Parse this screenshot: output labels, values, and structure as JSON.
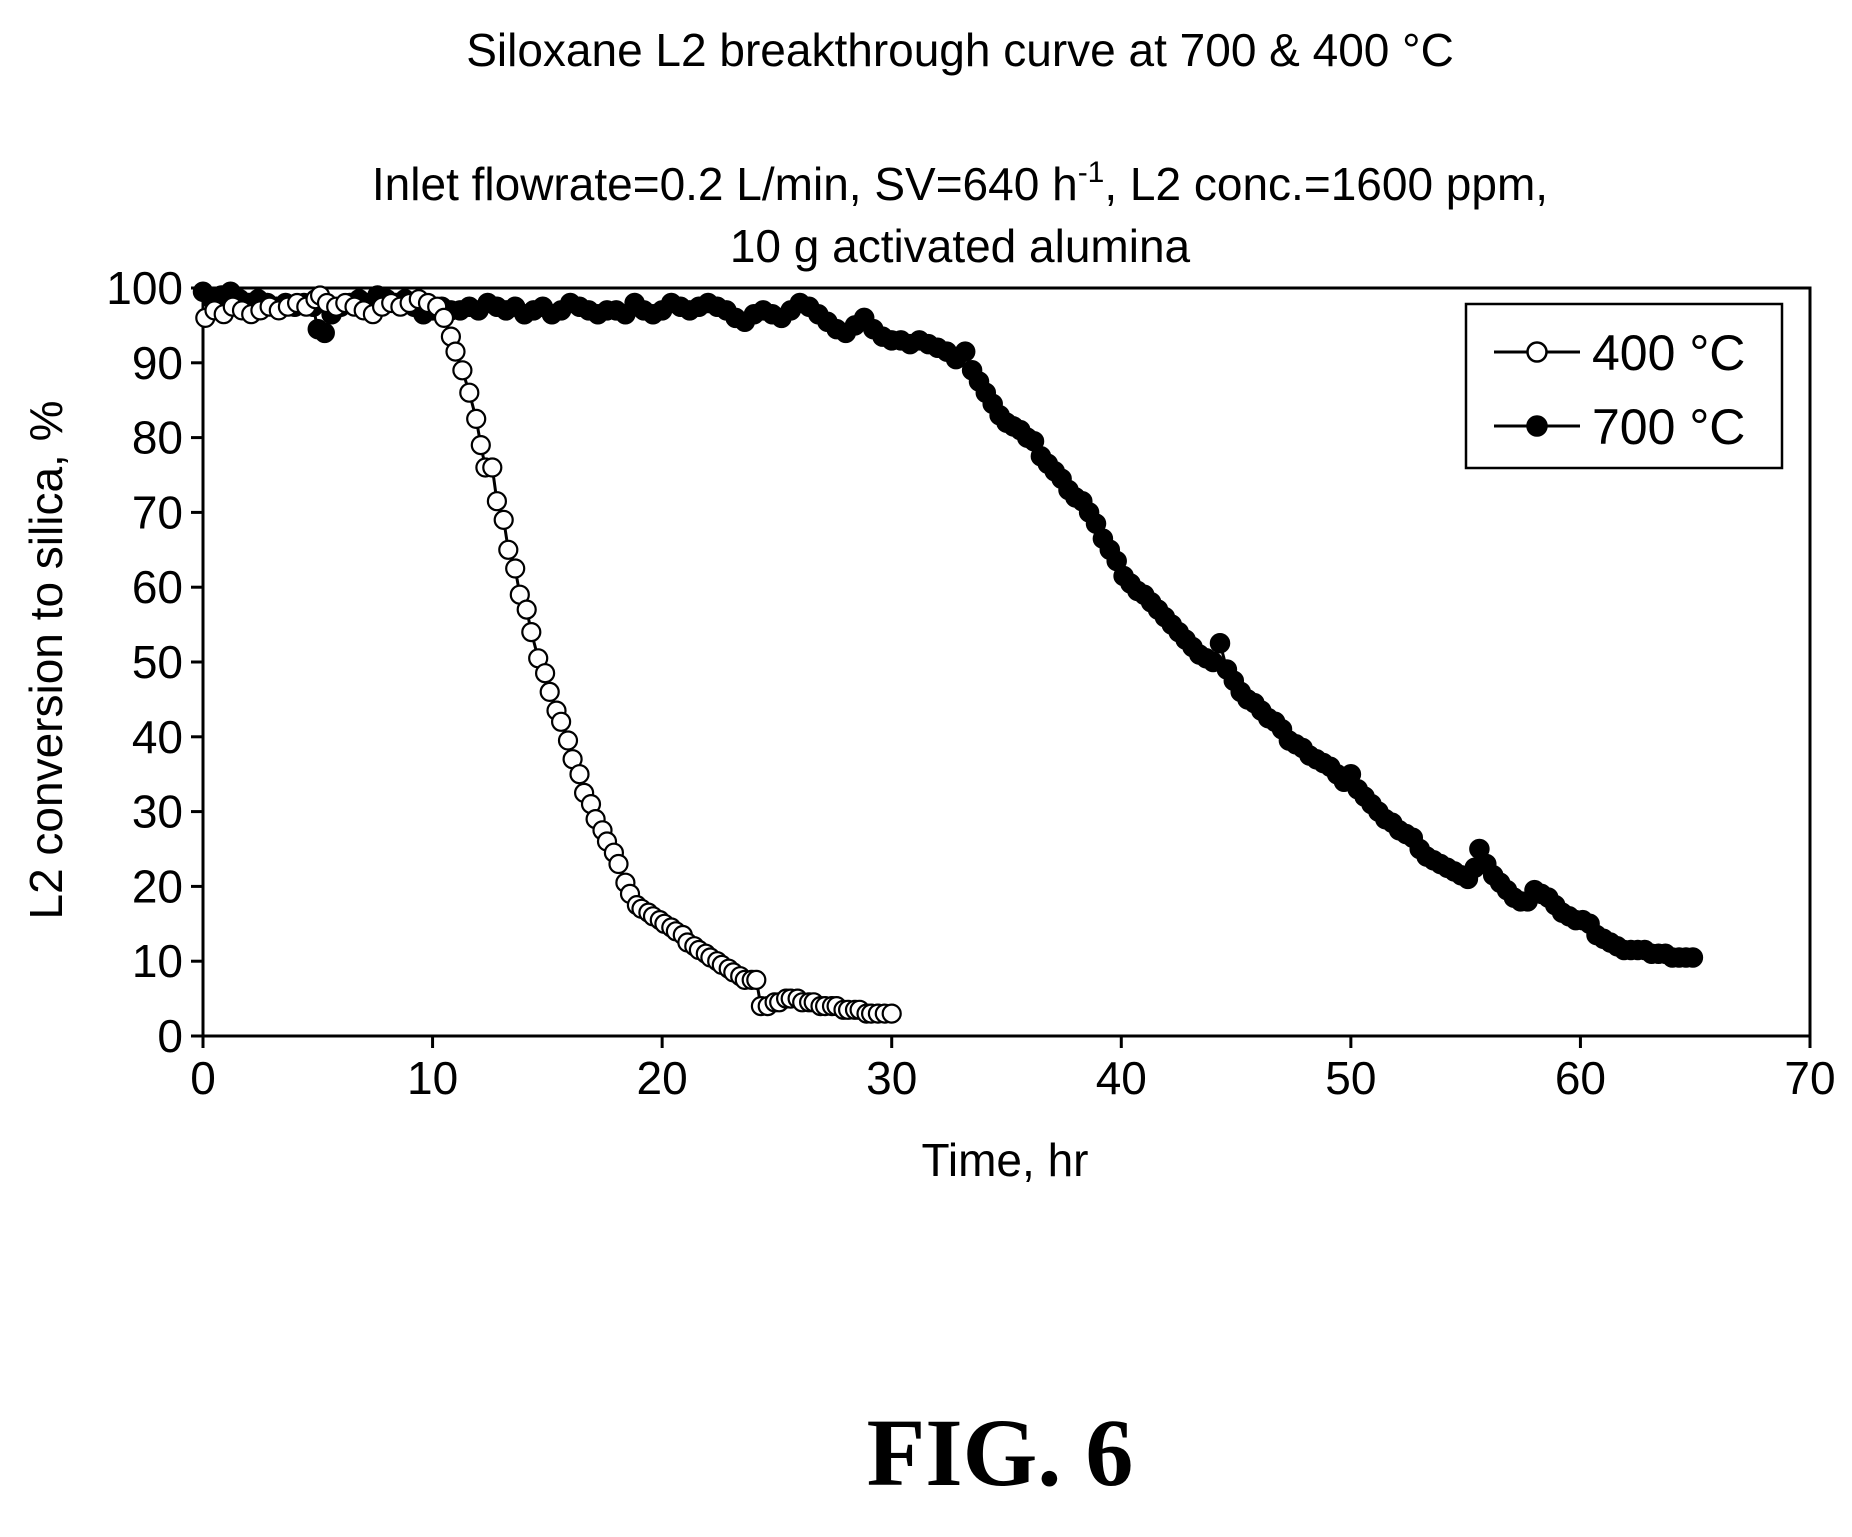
{
  "figure": {
    "label": "FIG. 6"
  },
  "chart_data": {
    "type": "scatter",
    "title": "Siloxane L2 breakthrough curve at 700 & 400 °C",
    "subtitle_prefix": "Inlet flowrate=0.2 L/min, SV=640 h",
    "subtitle_sup": "-1",
    "subtitle_suffix": ", L2 conc.=1600 ppm,",
    "subtitle_line2": "10 g activated alumina",
    "xlabel": "Time, hr",
    "ylabel": "L2 conversion to silica, %",
    "xlim": [
      0,
      70
    ],
    "ylim": [
      0,
      100
    ],
    "xticks": [
      0,
      10,
      20,
      30,
      40,
      50,
      60,
      70
    ],
    "yticks": [
      0,
      10,
      20,
      30,
      40,
      50,
      60,
      70,
      80,
      90,
      100
    ],
    "grid": false,
    "legend_position": "top-right",
    "series": [
      {
        "name": "400 °C",
        "marker": "open-circle",
        "color": "#000000",
        "points": [
          [
            0.1,
            96
          ],
          [
            0.5,
            97
          ],
          [
            0.9,
            96.5
          ],
          [
            1.3,
            97.5
          ],
          [
            1.7,
            97
          ],
          [
            2.1,
            96.5
          ],
          [
            2.5,
            97
          ],
          [
            2.9,
            97.5
          ],
          [
            3.3,
            97
          ],
          [
            3.7,
            97.5
          ],
          [
            4.1,
            98
          ],
          [
            4.5,
            97.5
          ],
          [
            4.9,
            98.5
          ],
          [
            5.1,
            99
          ],
          [
            5.4,
            98
          ],
          [
            5.8,
            97.5
          ],
          [
            6.2,
            98
          ],
          [
            6.6,
            97.5
          ],
          [
            7.0,
            97
          ],
          [
            7.4,
            96.5
          ],
          [
            7.8,
            97.5
          ],
          [
            8.2,
            98
          ],
          [
            8.6,
            97.5
          ],
          [
            9.0,
            98
          ],
          [
            9.4,
            98.5
          ],
          [
            9.8,
            98
          ],
          [
            10.2,
            97.5
          ],
          [
            10.5,
            96
          ],
          [
            10.8,
            93.5
          ],
          [
            11.0,
            91.5
          ],
          [
            11.3,
            89
          ],
          [
            11.6,
            86
          ],
          [
            11.9,
            82.5
          ],
          [
            12.1,
            79
          ],
          [
            12.3,
            76
          ],
          [
            12.6,
            76
          ],
          [
            12.8,
            71.5
          ],
          [
            13.1,
            69
          ],
          [
            13.3,
            65
          ],
          [
            13.6,
            62.5
          ],
          [
            13.8,
            59
          ],
          [
            14.1,
            57
          ],
          [
            14.3,
            54
          ],
          [
            14.6,
            50.5
          ],
          [
            14.9,
            48.5
          ],
          [
            15.1,
            46
          ],
          [
            15.4,
            43.5
          ],
          [
            15.6,
            42
          ],
          [
            15.9,
            39.5
          ],
          [
            16.1,
            37
          ],
          [
            16.4,
            35
          ],
          [
            16.6,
            32.5
          ],
          [
            16.9,
            31
          ],
          [
            17.1,
            29
          ],
          [
            17.4,
            27.5
          ],
          [
            17.6,
            26
          ],
          [
            17.9,
            24.5
          ],
          [
            18.1,
            23
          ],
          [
            18.4,
            20.5
          ],
          [
            18.6,
            19
          ],
          [
            18.9,
            17.5
          ],
          [
            19.1,
            17
          ],
          [
            19.4,
            16.5
          ],
          [
            19.6,
            16
          ],
          [
            19.9,
            15.5
          ],
          [
            20.1,
            15
          ],
          [
            20.4,
            14.5
          ],
          [
            20.6,
            14
          ],
          [
            20.9,
            13.5
          ],
          [
            21.1,
            12.5
          ],
          [
            21.4,
            12
          ],
          [
            21.6,
            11.5
          ],
          [
            21.9,
            11
          ],
          [
            22.1,
            10.5
          ],
          [
            22.4,
            10
          ],
          [
            22.6,
            9.5
          ],
          [
            22.9,
            9
          ],
          [
            23.1,
            8.5
          ],
          [
            23.4,
            8
          ],
          [
            23.6,
            7.5
          ],
          [
            23.9,
            7.5
          ],
          [
            24.1,
            7.5
          ],
          [
            24.3,
            4
          ],
          [
            24.6,
            4
          ],
          [
            24.9,
            4.5
          ],
          [
            25.1,
            4.5
          ],
          [
            25.4,
            5
          ],
          [
            25.6,
            5
          ],
          [
            25.9,
            5
          ],
          [
            26.1,
            4.5
          ],
          [
            26.4,
            4.5
          ],
          [
            26.6,
            4.5
          ],
          [
            26.9,
            4
          ],
          [
            27.1,
            4
          ],
          [
            27.4,
            4
          ],
          [
            27.6,
            4
          ],
          [
            27.9,
            3.5
          ],
          [
            28.1,
            3.5
          ],
          [
            28.4,
            3.5
          ],
          [
            28.6,
            3.5
          ],
          [
            28.9,
            3
          ],
          [
            29.1,
            3
          ],
          [
            29.4,
            3
          ],
          [
            29.7,
            3
          ],
          [
            30.0,
            3
          ]
        ]
      },
      {
        "name": "700 °C",
        "marker": "filled-circle",
        "color": "#000000",
        "points": [
          [
            0.0,
            99.5
          ],
          [
            0.4,
            98.5
          ],
          [
            0.8,
            99
          ],
          [
            1.2,
            99.5
          ],
          [
            1.6,
            98.5
          ],
          [
            2.0,
            98
          ],
          [
            2.4,
            98.5
          ],
          [
            2.8,
            98
          ],
          [
            3.2,
            97.5
          ],
          [
            3.6,
            98
          ],
          [
            4.0,
            97.5
          ],
          [
            4.4,
            98
          ],
          [
            4.8,
            97.5
          ],
          [
            5.0,
            94.5
          ],
          [
            5.3,
            94
          ],
          [
            5.6,
            96.5
          ],
          [
            6.0,
            97.5
          ],
          [
            6.4,
            98
          ],
          [
            6.8,
            98.5
          ],
          [
            7.2,
            98
          ],
          [
            7.6,
            99
          ],
          [
            8.0,
            98.5
          ],
          [
            8.4,
            98
          ],
          [
            8.8,
            98.5
          ],
          [
            9.2,
            97.5
          ],
          [
            9.6,
            96.5
          ],
          [
            10.0,
            97
          ],
          [
            10.4,
            97.5
          ],
          [
            10.8,
            97
          ],
          [
            11.2,
            97
          ],
          [
            11.6,
            97.5
          ],
          [
            12.0,
            97
          ],
          [
            12.4,
            98
          ],
          [
            12.8,
            97.5
          ],
          [
            13.2,
            97
          ],
          [
            13.6,
            97.5
          ],
          [
            14.0,
            96.5
          ],
          [
            14.4,
            97
          ],
          [
            14.8,
            97.5
          ],
          [
            15.2,
            96.5
          ],
          [
            15.6,
            97
          ],
          [
            16.0,
            98
          ],
          [
            16.4,
            97.5
          ],
          [
            16.8,
            97
          ],
          [
            17.2,
            96.5
          ],
          [
            17.6,
            97
          ],
          [
            18.0,
            97
          ],
          [
            18.4,
            96.5
          ],
          [
            18.8,
            98
          ],
          [
            19.2,
            97
          ],
          [
            19.6,
            96.5
          ],
          [
            20.0,
            97
          ],
          [
            20.4,
            98
          ],
          [
            20.8,
            97.5
          ],
          [
            21.2,
            97
          ],
          [
            21.6,
            97.5
          ],
          [
            22.0,
            98
          ],
          [
            22.4,
            97.5
          ],
          [
            22.8,
            97
          ],
          [
            23.2,
            96
          ],
          [
            23.6,
            95.5
          ],
          [
            24.0,
            96.5
          ],
          [
            24.4,
            97
          ],
          [
            24.8,
            96.5
          ],
          [
            25.2,
            96
          ],
          [
            25.6,
            97
          ],
          [
            26.0,
            98
          ],
          [
            26.4,
            97.5
          ],
          [
            26.8,
            96.5
          ],
          [
            27.2,
            95.5
          ],
          [
            27.6,
            94.5
          ],
          [
            28.0,
            94
          ],
          [
            28.4,
            95
          ],
          [
            28.8,
            96
          ],
          [
            29.2,
            94.5
          ],
          [
            29.6,
            93.5
          ],
          [
            30.0,
            93
          ],
          [
            30.4,
            93
          ],
          [
            30.8,
            92.5
          ],
          [
            31.2,
            93
          ],
          [
            31.6,
            92.5
          ],
          [
            32.0,
            92
          ],
          [
            32.4,
            91.5
          ],
          [
            32.8,
            90.5
          ],
          [
            33.2,
            91.5
          ],
          [
            33.5,
            89
          ],
          [
            33.8,
            87.5
          ],
          [
            34.1,
            86
          ],
          [
            34.4,
            84.5
          ],
          [
            34.7,
            83
          ],
          [
            35.0,
            82
          ],
          [
            35.3,
            81.5
          ],
          [
            35.6,
            81
          ],
          [
            35.9,
            80
          ],
          [
            36.2,
            79.5
          ],
          [
            36.5,
            77.5
          ],
          [
            36.8,
            76.5
          ],
          [
            37.1,
            75.5
          ],
          [
            37.4,
            74.5
          ],
          [
            37.7,
            73
          ],
          [
            38.0,
            72
          ],
          [
            38.3,
            71.5
          ],
          [
            38.6,
            70
          ],
          [
            38.9,
            68.5
          ],
          [
            39.2,
            66.5
          ],
          [
            39.5,
            65
          ],
          [
            39.8,
            63.5
          ],
          [
            40.1,
            61.5
          ],
          [
            40.4,
            60.5
          ],
          [
            40.7,
            59.5
          ],
          [
            41.0,
            59
          ],
          [
            41.3,
            58
          ],
          [
            41.6,
            57
          ],
          [
            41.9,
            56
          ],
          [
            42.2,
            55
          ],
          [
            42.5,
            54
          ],
          [
            42.8,
            53
          ],
          [
            43.1,
            52
          ],
          [
            43.4,
            51
          ],
          [
            43.7,
            50.5
          ],
          [
            44.0,
            50
          ],
          [
            44.3,
            52.5
          ],
          [
            44.6,
            49
          ],
          [
            44.9,
            47.5
          ],
          [
            45.2,
            46
          ],
          [
            45.5,
            45
          ],
          [
            45.8,
            44.5
          ],
          [
            46.1,
            43.5
          ],
          [
            46.4,
            42.5
          ],
          [
            46.7,
            42
          ],
          [
            47.0,
            41
          ],
          [
            47.3,
            39.5
          ],
          [
            47.6,
            39
          ],
          [
            47.9,
            38.5
          ],
          [
            48.2,
            37.5
          ],
          [
            48.5,
            37
          ],
          [
            48.8,
            36.5
          ],
          [
            49.1,
            36
          ],
          [
            49.4,
            35
          ],
          [
            49.7,
            34
          ],
          [
            50.0,
            35
          ],
          [
            50.3,
            33
          ],
          [
            50.6,
            32
          ],
          [
            50.9,
            31
          ],
          [
            51.2,
            30
          ],
          [
            51.5,
            29
          ],
          [
            51.8,
            28.5
          ],
          [
            52.1,
            27.5
          ],
          [
            52.4,
            27
          ],
          [
            52.7,
            26.5
          ],
          [
            53.0,
            25
          ],
          [
            53.3,
            24
          ],
          [
            53.6,
            23.5
          ],
          [
            53.9,
            23
          ],
          [
            54.2,
            22.5
          ],
          [
            54.5,
            22
          ],
          [
            54.8,
            21.5
          ],
          [
            55.1,
            21
          ],
          [
            55.4,
            22.5
          ],
          [
            55.6,
            25
          ],
          [
            55.9,
            23
          ],
          [
            56.2,
            21.5
          ],
          [
            56.5,
            20.5
          ],
          [
            56.8,
            19.5
          ],
          [
            57.1,
            18.5
          ],
          [
            57.4,
            18
          ],
          [
            57.7,
            18
          ],
          [
            58.0,
            19.5
          ],
          [
            58.3,
            19
          ],
          [
            58.6,
            18.5
          ],
          [
            58.9,
            17.5
          ],
          [
            59.2,
            16.5
          ],
          [
            59.5,
            16
          ],
          [
            59.8,
            15.5
          ],
          [
            60.1,
            15.5
          ],
          [
            60.4,
            15
          ],
          [
            60.7,
            13.5
          ],
          [
            61.0,
            13
          ],
          [
            61.3,
            12.5
          ],
          [
            61.6,
            12
          ],
          [
            61.9,
            11.5
          ],
          [
            62.2,
            11.5
          ],
          [
            62.5,
            11.5
          ],
          [
            62.8,
            11.5
          ],
          [
            63.1,
            11
          ],
          [
            63.4,
            11
          ],
          [
            63.7,
            11
          ],
          [
            64.0,
            10.5
          ],
          [
            64.3,
            10.5
          ],
          [
            64.6,
            10.5
          ],
          [
            64.9,
            10.5
          ]
        ]
      }
    ]
  }
}
